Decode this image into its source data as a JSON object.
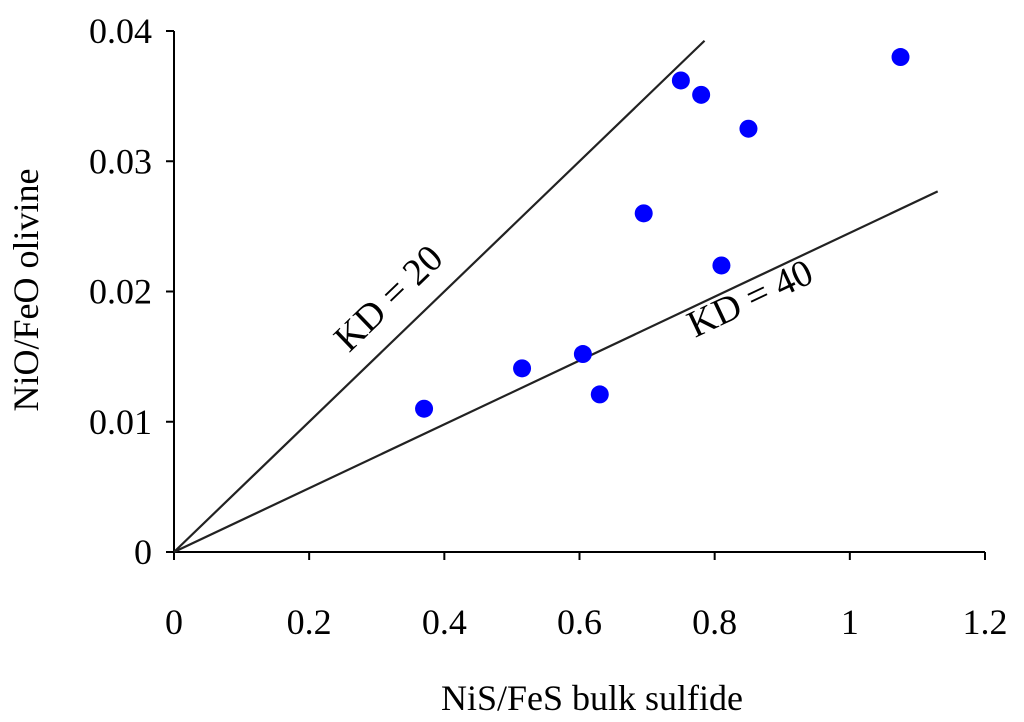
{
  "chart_data": {
    "type": "scatter",
    "xlabel": "NiS/FeS bulk sulfide",
    "ylabel": "NiO/FeO olivine",
    "xlim": [
      0,
      1.2
    ],
    "ylim": [
      0,
      0.04
    ],
    "x_ticks": [
      "0",
      "0.2",
      "0.4",
      "0.6",
      "0.8",
      "1",
      "1.2"
    ],
    "y_ticks": [
      "0",
      "0.01",
      "0.02",
      "0.03",
      "0.04"
    ],
    "x_tick_values": [
      0,
      0.2,
      0.4,
      0.6,
      0.8,
      1.0,
      1.2
    ],
    "y_tick_values": [
      0,
      0.01,
      0.02,
      0.03,
      0.04
    ],
    "grid": false,
    "point_color": "#0000ff",
    "points": [
      {
        "x": 0.37,
        "y": 0.011
      },
      {
        "x": 0.515,
        "y": 0.0141
      },
      {
        "x": 0.605,
        "y": 0.0152
      },
      {
        "x": 0.63,
        "y": 0.0121
      },
      {
        "x": 0.695,
        "y": 0.026
      },
      {
        "x": 0.75,
        "y": 0.0362
      },
      {
        "x": 0.78,
        "y": 0.0351
      },
      {
        "x": 0.81,
        "y": 0.022
      },
      {
        "x": 0.85,
        "y": 0.0325
      },
      {
        "x": 1.075,
        "y": 0.038
      }
    ],
    "reference_lines": [
      {
        "label": "KD = 20",
        "slope": 0.05,
        "x_end": 0.785
      },
      {
        "label": "KD = 40",
        "slope": 0.0245,
        "x_end": 1.13
      }
    ]
  }
}
